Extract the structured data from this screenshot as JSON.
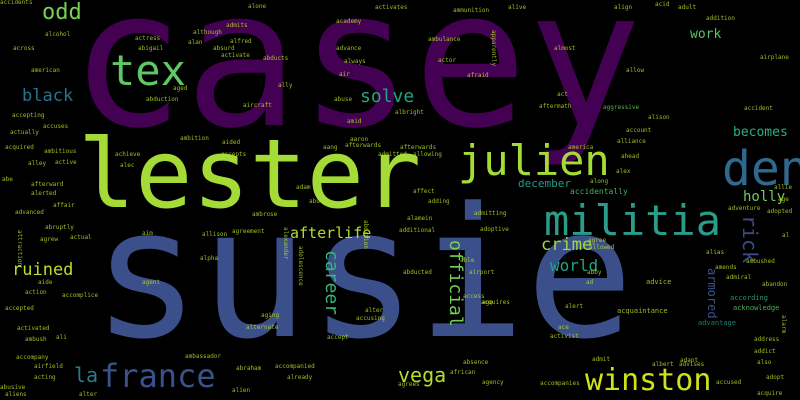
{
  "words": [
    {
      "text": "casey",
      "color": "#440154",
      "key": true
    },
    {
      "text": "susie",
      "color": "#3b4f8b",
      "key": true
    },
    {
      "text": "lester",
      "color": "#a5db36",
      "key": true
    },
    {
      "text": "julien",
      "color": "#a5db36",
      "key": true
    },
    {
      "text": "militia",
      "color": "#2a9c8a",
      "key": true
    },
    {
      "text": "den",
      "color": "#30688e",
      "key": true
    },
    {
      "text": "france",
      "color": "#3a528b",
      "key": true
    },
    {
      "text": "winston",
      "color": "#cde11d",
      "key": true
    },
    {
      "text": "tex",
      "color": "#5ec962",
      "key": true
    },
    {
      "text": "odd",
      "color": "#7ad151",
      "key": false
    },
    {
      "text": "black",
      "color": "#2c728e",
      "key": false
    },
    {
      "text": "solve",
      "color": "#20a386",
      "key": false
    },
    {
      "text": "ruined",
      "color": "#b8de29",
      "key": false
    },
    {
      "text": "vega",
      "color": "#b5de2b",
      "key": false
    },
    {
      "text": "la",
      "color": "#2a788e",
      "key": false
    },
    {
      "text": "crime",
      "color": "#a2da37",
      "key": false
    },
    {
      "text": "world",
      "color": "#20a486",
      "key": false
    },
    {
      "text": "career",
      "color": "#35b779",
      "key": false
    },
    {
      "text": "afterlife",
      "color": "#b5de2b",
      "key": false
    },
    {
      "text": "official",
      "color": "#73d056",
      "key": false
    },
    {
      "text": "rick",
      "color": "#3e4989",
      "key": false
    },
    {
      "text": "holly",
      "color": "#6ccd5a",
      "key": false
    },
    {
      "text": "becomes",
      "color": "#2ab07f",
      "key": false
    },
    {
      "text": "work",
      "color": "#52c569",
      "key": false
    },
    {
      "text": "armored",
      "color": "#3b528b",
      "key": false
    },
    {
      "text": "december",
      "color": "#1f9e89",
      "key": false
    },
    {
      "text": "accidentally",
      "color": "#5cc863",
      "key": false
    },
    {
      "text": "advantage",
      "color": "#1f9a8a",
      "key": false
    },
    {
      "text": "according",
      "color": "#2db27d",
      "key": false
    },
    {
      "text": "acknowledge",
      "color": "#5cc863",
      "key": false
    },
    {
      "text": "acquaintance",
      "color": "#b5de2b",
      "key": false
    },
    {
      "text": "advice",
      "color": "#b8de29",
      "key": false
    },
    {
      "text": "admitted",
      "color": "#b8de29",
      "key": false
    },
    {
      "text": "afterwards",
      "color": "#b8de29",
      "key": false
    },
    {
      "text": "aircraft",
      "color": "#b8de29",
      "key": false
    },
    {
      "text": "albright",
      "color": "#b8de29",
      "key": false
    },
    {
      "text": "aggressive",
      "color": "#6ccd5a",
      "key": false
    },
    {
      "text": "activates",
      "color": "#b8de29",
      "key": false
    },
    {
      "text": "admitting",
      "color": "#b8de29",
      "key": false
    },
    {
      "text": "ambush",
      "color": "#b8de29",
      "key": false
    },
    {
      "text": "acting",
      "color": "#b8de29",
      "key": false
    },
    {
      "text": "agency",
      "color": "#b8de29",
      "key": false
    },
    {
      "text": "absence",
      "color": "#b8de29",
      "key": false
    },
    {
      "text": "agrees",
      "color": "#b8de29",
      "key": false
    },
    {
      "text": "accompanies",
      "color": "#b8de29",
      "key": false
    },
    {
      "text": "action",
      "color": "#b8de29",
      "key": false
    },
    {
      "text": "ace",
      "color": "#b8de29",
      "key": false
    },
    {
      "text": "activist",
      "color": "#b8de29",
      "key": false
    },
    {
      "text": "accompanied",
      "color": "#b8de29",
      "key": false
    },
    {
      "text": "alternate",
      "color": "#b8de29",
      "key": false
    },
    {
      "text": "alley",
      "color": "#b8de29",
      "key": false
    },
    {
      "text": "ali",
      "color": "#b8de29",
      "key": false
    },
    {
      "text": "ally",
      "color": "#b8de29",
      "key": false
    },
    {
      "text": "amid",
      "color": "#b8de29",
      "key": false
    },
    {
      "text": "abduction",
      "color": "#b8de29",
      "key": false
    },
    {
      "text": "affect",
      "color": "#b8de29",
      "key": false
    },
    {
      "text": "alert",
      "color": "#b8de29",
      "key": false
    },
    {
      "text": "adapt",
      "color": "#b8de29",
      "key": false
    },
    {
      "text": "adopt",
      "color": "#b8de29",
      "key": false
    },
    {
      "text": "agent",
      "color": "#b8de29",
      "key": false
    },
    {
      "text": "aliens",
      "color": "#b8de29",
      "key": false
    },
    {
      "text": "african",
      "color": "#b8de29",
      "key": false
    },
    {
      "text": "airfield",
      "color": "#b8de29",
      "key": false
    },
    {
      "text": "abraham",
      "color": "#b8de29",
      "key": false
    },
    {
      "text": "accused",
      "color": "#b8de29",
      "key": false
    },
    {
      "text": "acquire",
      "color": "#b8de29",
      "key": false
    },
    {
      "text": "access",
      "color": "#b8de29",
      "key": false
    },
    {
      "text": "acquires",
      "color": "#b8de29",
      "key": false
    },
    {
      "text": "ago",
      "color": "#b8de29",
      "key": false
    },
    {
      "text": "addict",
      "color": "#b8de29",
      "key": false
    },
    {
      "text": "address",
      "color": "#b8de29",
      "key": false
    },
    {
      "text": "also",
      "color": "#b8de29",
      "key": false
    },
    {
      "text": "admit",
      "color": "#b8de29",
      "key": false
    },
    {
      "text": "advises",
      "color": "#b8de29",
      "key": false
    },
    {
      "text": "albert",
      "color": "#b8de29",
      "key": false
    },
    {
      "text": "accept",
      "color": "#b8de29",
      "key": false
    },
    {
      "text": "accompany",
      "color": "#b8de29",
      "key": false
    },
    {
      "text": "ambassador",
      "color": "#b8de29",
      "key": false
    },
    {
      "text": "accusing",
      "color": "#b8de29",
      "key": false
    },
    {
      "text": "alter",
      "color": "#b8de29",
      "key": false
    },
    {
      "text": "aging",
      "color": "#b8de29",
      "key": false
    },
    {
      "text": "already",
      "color": "#b8de29",
      "key": false
    },
    {
      "text": "airport",
      "color": "#b8de29",
      "key": false
    },
    {
      "text": "abducted",
      "color": "#b8de29",
      "key": false
    },
    {
      "text": "able",
      "color": "#b8de29",
      "key": false
    },
    {
      "text": "abby",
      "color": "#b8de29",
      "key": false
    },
    {
      "text": "ad",
      "color": "#b8de29",
      "key": false
    },
    {
      "text": "alex",
      "color": "#b8de29",
      "key": false
    },
    {
      "text": "ahead",
      "color": "#b8de29",
      "key": false
    },
    {
      "text": "allowed",
      "color": "#b8de29",
      "key": false
    },
    {
      "text": "alamein",
      "color": "#b8de29",
      "key": false
    },
    {
      "text": "additional",
      "color": "#b8de29",
      "key": false
    },
    {
      "text": "adding",
      "color": "#b8de29",
      "key": false
    },
    {
      "text": "allowing",
      "color": "#b8de29",
      "key": false
    },
    {
      "text": "abu",
      "color": "#b8de29",
      "key": false
    },
    {
      "text": "adam",
      "color": "#b8de29",
      "key": false
    },
    {
      "text": "ambrose",
      "color": "#b8de29",
      "key": false
    },
    {
      "text": "aim",
      "color": "#b8de29",
      "key": false
    },
    {
      "text": "allison",
      "color": "#b8de29",
      "key": false
    },
    {
      "text": "agreement",
      "color": "#b8de29",
      "key": false
    },
    {
      "text": "alpha",
      "color": "#b8de29",
      "key": false
    },
    {
      "text": "alec",
      "color": "#b8de29",
      "key": false
    },
    {
      "text": "accepts",
      "color": "#b8de29",
      "key": false
    },
    {
      "text": "aided",
      "color": "#b8de29",
      "key": false
    },
    {
      "text": "achieve",
      "color": "#b8de29",
      "key": false
    },
    {
      "text": "ambition",
      "color": "#b8de29",
      "key": false
    },
    {
      "text": "aang",
      "color": "#b8de29",
      "key": false
    },
    {
      "text": "aaron",
      "color": "#b8de29",
      "key": false
    },
    {
      "text": "abuse",
      "color": "#b8de29",
      "key": false
    },
    {
      "text": "air",
      "color": "#b8de29",
      "key": false
    },
    {
      "text": "always",
      "color": "#b8de29",
      "key": false
    },
    {
      "text": "aged",
      "color": "#b8de29",
      "key": false
    },
    {
      "text": "abducts",
      "color": "#b8de29",
      "key": false
    },
    {
      "text": "activate",
      "color": "#b8de29",
      "key": false
    },
    {
      "text": "absurd",
      "color": "#b8de29",
      "key": false
    },
    {
      "text": "alan",
      "color": "#b8de29",
      "key": false
    },
    {
      "text": "alfred",
      "color": "#b8de29",
      "key": false
    },
    {
      "text": "abigail",
      "color": "#b8de29",
      "key": false
    },
    {
      "text": "actress",
      "color": "#b8de29",
      "key": false
    },
    {
      "text": "admits",
      "color": "#b8de29",
      "key": false
    },
    {
      "text": "although",
      "color": "#b8de29",
      "key": false
    },
    {
      "text": "alone",
      "color": "#b8de29",
      "key": false
    },
    {
      "text": "academy",
      "color": "#b8de29",
      "key": false
    },
    {
      "text": "advance",
      "color": "#b8de29",
      "key": false
    },
    {
      "text": "ammunition",
      "color": "#b8de29",
      "key": false
    },
    {
      "text": "alive",
      "color": "#b8de29",
      "key": false
    },
    {
      "text": "ambulance",
      "color": "#b8de29",
      "key": false
    },
    {
      "text": "actor",
      "color": "#b8de29",
      "key": false
    },
    {
      "text": "align",
      "color": "#b8de29",
      "key": false
    },
    {
      "text": "acid",
      "color": "#b8de29",
      "key": false
    },
    {
      "text": "adult",
      "color": "#b8de29",
      "key": false
    },
    {
      "text": "addition",
      "color": "#b8de29",
      "key": false
    },
    {
      "text": "almost",
      "color": "#b8de29",
      "key": false
    },
    {
      "text": "allow",
      "color": "#b8de29",
      "key": false
    },
    {
      "text": "airplane",
      "color": "#b8de29",
      "key": false
    },
    {
      "text": "afraid",
      "color": "#b8de29",
      "key": false
    },
    {
      "text": "act",
      "color": "#b8de29",
      "key": false
    },
    {
      "text": "aftermath",
      "color": "#b8de29",
      "key": false
    },
    {
      "text": "alison",
      "color": "#b8de29",
      "key": false
    },
    {
      "text": "account",
      "color": "#b8de29",
      "key": false
    },
    {
      "text": "alliance",
      "color": "#b8de29",
      "key": false
    },
    {
      "text": "accident",
      "color": "#b8de29",
      "key": false
    },
    {
      "text": "america",
      "color": "#b8de29",
      "key": false
    },
    {
      "text": "along",
      "color": "#b8de29",
      "key": false
    },
    {
      "text": "alcohol",
      "color": "#b8de29",
      "key": false
    },
    {
      "text": "across",
      "color": "#b8de29",
      "key": false
    },
    {
      "text": "american",
      "color": "#b8de29",
      "key": false
    },
    {
      "text": "accepting",
      "color": "#b8de29",
      "key": false
    },
    {
      "text": "actually",
      "color": "#b8de29",
      "key": false
    },
    {
      "text": "accuses",
      "color": "#b8de29",
      "key": false
    },
    {
      "text": "acquired",
      "color": "#b8de29",
      "key": false
    },
    {
      "text": "ambitious",
      "color": "#b8de29",
      "key": false
    },
    {
      "text": "active",
      "color": "#b8de29",
      "key": false
    },
    {
      "text": "abe",
      "color": "#b8de29",
      "key": false
    },
    {
      "text": "afterward",
      "color": "#b8de29",
      "key": false
    },
    {
      "text": "alerted",
      "color": "#b8de29",
      "key": false
    },
    {
      "text": "affair",
      "color": "#b8de29",
      "key": false
    },
    {
      "text": "advanced",
      "color": "#b8de29",
      "key": false
    },
    {
      "text": "abruptly",
      "color": "#b8de29",
      "key": false
    },
    {
      "text": "agrew",
      "color": "#b8de29",
      "key": false
    },
    {
      "text": "aide",
      "color": "#b8de29",
      "key": false
    },
    {
      "text": "accomplice",
      "color": "#b8de29",
      "key": false
    },
    {
      "text": "accepted",
      "color": "#b8de29",
      "key": false
    },
    {
      "text": "activated",
      "color": "#b8de29",
      "key": false
    },
    {
      "text": "alien",
      "color": "#b8de29",
      "key": false
    },
    {
      "text": "alter",
      "color": "#b8de29",
      "key": false
    },
    {
      "text": "adopted",
      "color": "#b8de29",
      "key": false
    },
    {
      "text": "adventure",
      "color": "#b8de29",
      "key": false
    },
    {
      "text": "allie",
      "color": "#b8de29",
      "key": false
    },
    {
      "text": "age",
      "color": "#b8de29",
      "key": false
    },
    {
      "text": "alias",
      "color": "#b8de29",
      "key": false
    },
    {
      "text": "abandon",
      "color": "#b8de29",
      "key": false
    },
    {
      "text": "ambushed",
      "color": "#b8de29",
      "key": false
    },
    {
      "text": "admiral",
      "color": "#b8de29",
      "key": false
    },
    {
      "text": "amends",
      "color": "#b8de29",
      "key": false
    },
    {
      "text": "al",
      "color": "#b8de29",
      "key": false
    },
    {
      "text": "alarm",
      "color": "#b8de29",
      "key": false
    },
    {
      "text": "abusive",
      "color": "#b8de29",
      "key": false
    },
    {
      "text": "adoptive",
      "color": "#b8de29",
      "key": false
    },
    {
      "text": "accidents",
      "color": "#b8de29",
      "key": false
    },
    {
      "text": "actual",
      "color": "#b8de29",
      "key": false
    },
    {
      "text": "attraction",
      "color": "#b8de29",
      "key": false
    },
    {
      "text": "agree",
      "color": "#b8de29",
      "key": false
    },
    {
      "text": "alexander",
      "color": "#b8de29",
      "key": false
    },
    {
      "text": "adolescence",
      "color": "#b8de29",
      "key": false
    },
    {
      "text": "apparently",
      "color": "#b8de29",
      "key": false
    },
    {
      "text": "abortion",
      "color": "#b8de29",
      "key": false
    },
    {
      "text": "afterwards",
      "color": "#b8de29",
      "key": false
    }
  ]
}
